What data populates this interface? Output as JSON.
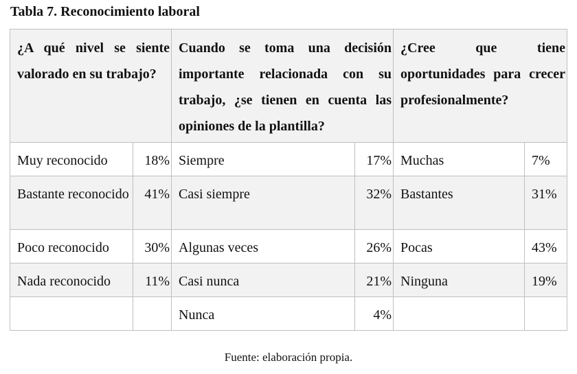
{
  "caption": "Tabla 7. Reconocimiento laboral",
  "headers": [
    "¿A qué nivel se siente valorado en su trabajo?",
    "Cuando se toma una decisión importante relacionada con su trabajo, ¿se tienen en cuenta las opiniones de la plantilla?",
    "¿Cree que tiene oportunidades para crecer profesionalmente?"
  ],
  "rows": [
    [
      "Muy reconocido",
      "18%",
      "Siempre",
      "17%",
      "Muchas",
      "7%"
    ],
    [
      "Bastante reconocido",
      "41%",
      "Casi siempre",
      "32%",
      "Bastantes",
      "31%"
    ],
    [
      "Poco reconocido",
      "30%",
      "Algunas veces",
      "26%",
      "Pocas",
      "43%"
    ],
    [
      "Nada reconocido",
      "11%",
      "Casi nunca",
      "21%",
      "Ninguna",
      "19%"
    ],
    [
      "",
      "",
      "Nunca",
      "4%",
      "",
      ""
    ]
  ],
  "source": "Fuente: elaboración propia."
}
